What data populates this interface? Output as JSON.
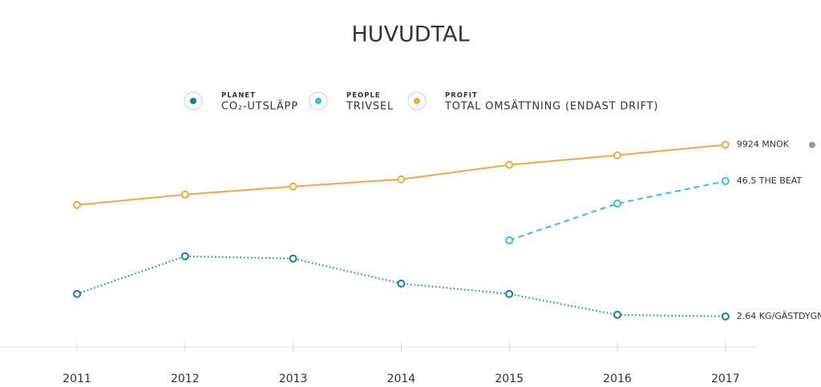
{
  "chart_data": {
    "type": "line",
    "title": "HUVUDTAL",
    "categories": [
      "2011",
      "2012",
      "2013",
      "2014",
      "2015",
      "2016",
      "2017"
    ],
    "series": [
      {
        "group": "PLANET",
        "name": "CO₂-UTSLÄPP",
        "color": "#1b7f99",
        "line_style": "dotted",
        "ylim": [
          0,
          23.1
        ],
        "values": [
          4.59,
          7.85,
          7.65,
          5.49,
          4.59,
          2.78,
          2.64
        ],
        "value_labels": [
          null,
          null,
          null,
          null,
          null,
          null,
          "2.64 KG/GÄSTDYGN"
        ]
      },
      {
        "group": "PEOPLE",
        "name": "TRIVSEL",
        "color": "#3bbde0",
        "line_style": "dashed",
        "ylim": [
          0,
          74.8
        ],
        "values": [
          null,
          null,
          null,
          null,
          29.9,
          40.2,
          46.5
        ],
        "value_labels": [
          null,
          null,
          null,
          null,
          null,
          null,
          "46.5 THE BEAT"
        ]
      },
      {
        "group": "PROFIT",
        "name": "TOTAL OMSÄTTNING (ENDAST DRIFT)",
        "color": "#f0a844",
        "line_style": "solid",
        "ylim": [
          0,
          13100
        ],
        "values": [
          6970,
          7483,
          7876,
          8231,
          8940,
          9412,
          9924
        ],
        "value_labels": [
          null,
          null,
          null,
          null,
          null,
          null,
          "9924 MNOK"
        ]
      }
    ]
  }
}
